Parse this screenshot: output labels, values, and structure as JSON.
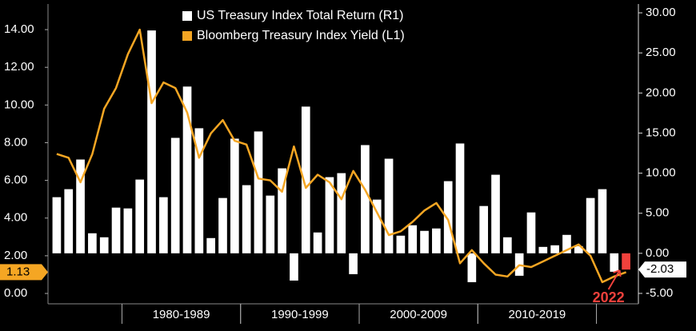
{
  "chart_data": {
    "type": "bar-line",
    "categories": [
      null,
      null,
      null,
      null,
      null,
      null,
      null,
      null,
      null,
      null,
      null,
      null,
      null,
      null,
      null,
      null,
      null,
      null,
      null,
      null,
      null,
      null,
      null,
      null,
      null,
      null,
      null,
      null,
      null,
      null,
      null,
      null,
      null,
      null,
      null,
      null,
      null,
      null,
      null,
      null,
      null,
      null,
      null,
      null,
      null,
      null,
      null,
      null,
      null
    ],
    "decades": [
      {
        "label": "1980-1989",
        "from": 6,
        "to": 15
      },
      {
        "label": "1990-1999",
        "from": 16,
        "to": 25
      },
      {
        "label": "2000-2009",
        "from": 26,
        "to": 35
      },
      {
        "label": "2010-2019",
        "from": 36,
        "to": 45
      }
    ],
    "series": [
      {
        "name": "US Treasury Index Total Return (R1)",
        "type": "bar",
        "axis": "y2",
        "color": "#ffffff",
        "values": [
          7.0,
          8.0,
          11.7,
          2.5,
          2.0,
          5.7,
          5.6,
          9.2,
          27.8,
          7.0,
          14.4,
          20.8,
          15.6,
          1.9,
          6.9,
          14.3,
          8.5,
          15.2,
          7.2,
          10.6,
          -3.4,
          18.3,
          2.6,
          9.5,
          10.0,
          -2.6,
          13.5,
          6.7,
          11.8,
          2.2,
          3.5,
          2.8,
          3.1,
          9.0,
          13.7,
          -3.6,
          5.9,
          9.8,
          2.0,
          -2.8,
          5.1,
          0.8,
          1.0,
          2.3,
          0.9,
          6.9,
          8.0,
          -2.3,
          -2.03
        ]
      },
      {
        "name": "Bloomberg Treasury Index Yield (L1)",
        "type": "line",
        "axis": "y",
        "color": "#f5a623",
        "values": [
          7.4,
          7.2,
          5.9,
          7.4,
          9.8,
          10.9,
          12.7,
          14.0,
          10.1,
          11.2,
          10.9,
          9.6,
          7.2,
          8.5,
          9.2,
          8.1,
          7.9,
          6.1,
          6.0,
          5.4,
          7.8,
          5.6,
          6.3,
          5.9,
          5.0,
          6.5,
          5.5,
          4.3,
          3.1,
          3.3,
          3.8,
          4.4,
          4.8,
          3.9,
          1.6,
          2.3,
          1.6,
          1.0,
          0.9,
          1.5,
          1.4,
          1.7,
          2.0,
          2.3,
          2.6,
          2.0,
          0.6,
          0.9,
          1.13
        ]
      }
    ],
    "highlight": {
      "index": 48,
      "color": "#f0413c",
      "label": "2022"
    },
    "ylim": [
      -0.55,
      15.36
    ],
    "yticks": [
      {
        "value": 0,
        "label": "0.00"
      },
      {
        "value": 2,
        "label": "2.00"
      },
      {
        "value": 4,
        "label": "4.00"
      },
      {
        "value": 6,
        "label": "6.00"
      },
      {
        "value": 8,
        "label": "8.00"
      },
      {
        "value": 10,
        "label": "10.00"
      },
      {
        "value": 12,
        "label": "12.00"
      },
      {
        "value": 14,
        "label": "14.00"
      }
    ],
    "y2lim": [
      -6.3,
      31.1
    ],
    "y2ticks": [
      {
        "value": -5,
        "label": "-5.00"
      },
      {
        "value": 0,
        "label": "0.00"
      },
      {
        "value": 5,
        "label": "5.00"
      },
      {
        "value": 10,
        "label": "10.00"
      },
      {
        "value": 15,
        "label": "15.00"
      },
      {
        "value": 20,
        "label": "20.00"
      },
      {
        "value": 25,
        "label": "25.00"
      },
      {
        "value": 30,
        "label": "30.00"
      }
    ],
    "legend": "top-center"
  }
}
